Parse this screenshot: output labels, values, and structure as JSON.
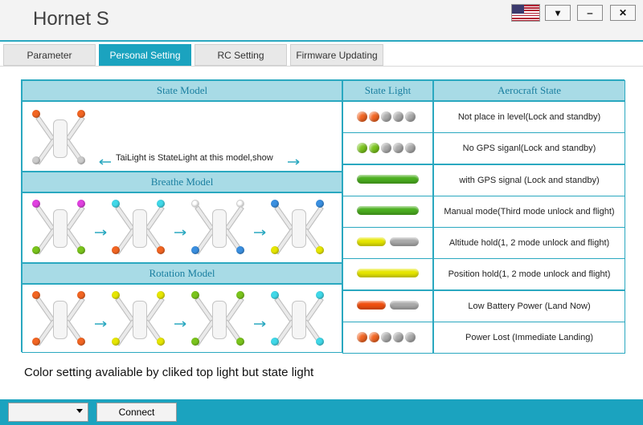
{
  "window": {
    "title": "Hornet S",
    "language_flag": "us-flag-icon",
    "buttons": {
      "dropdown": "▾",
      "minimize": "‒",
      "close": "✕"
    }
  },
  "tabs": [
    {
      "label": "Parameter",
      "active": false
    },
    {
      "label": "Personal Setting",
      "active": true
    },
    {
      "label": "RC Setting",
      "active": false
    },
    {
      "label": "Firmware Updating",
      "active": false
    }
  ],
  "table": {
    "headers": {
      "state_model": "State Model",
      "state_light": "State Light",
      "aerocraft_state": "Aerocraft State"
    },
    "breathe_model": "Breathe Model",
    "rotation_model": "Rotation Model",
    "tail_note": "TaiLight is StateLight at this model,show",
    "rows": [
      {
        "lights": [
          "#f26522",
          "#f26522",
          "#aaaaaa",
          "#aaaaaa",
          "#aaaaaa"
        ],
        "type": "dots",
        "state": "Not place in level(Lock and standby)"
      },
      {
        "lights": [
          "#7ac41c",
          "#7ac41c",
          "#aaaaaa",
          "#aaaaaa",
          "#aaaaaa"
        ],
        "type": "dots",
        "state": "No GPS siganl(Lock and standby)"
      },
      {
        "lights": [
          "#4caf20"
        ],
        "type": "bar-full",
        "state": "with GPS signal (Lock and standby)"
      },
      {
        "lights": [
          "#4caf20"
        ],
        "type": "bar-full",
        "state": "Manual mode(Third mode unlock and flight)"
      },
      {
        "lights": [
          "#e6e600",
          "#aaaaaa"
        ],
        "type": "bar-half",
        "state": "Altitude hold(1, 2 mode unlock and flight)"
      },
      {
        "lights": [
          "#e6e600"
        ],
        "type": "bar-full",
        "state": "Position hold(1, 2 mode unlock and flight)"
      },
      {
        "lights": [
          "#f05010",
          "#aaaaaa"
        ],
        "type": "bar-half",
        "state": "Low Battery Power (Land Now)"
      },
      {
        "lights": [
          "#f26522",
          "#f26522",
          "#aaaaaa",
          "#aaaaaa",
          "#aaaaaa"
        ],
        "type": "dots",
        "state": "Power Lost (Immediate Landing)"
      }
    ]
  },
  "drone_leds": {
    "state": [
      "#f26522",
      "#f26522",
      "#cccccc",
      "#cccccc"
    ],
    "breathe": [
      [
        "#e040e0",
        "#e040e0",
        "#7ac41c",
        "#7ac41c"
      ],
      [
        "#40d8e8",
        "#40d8e8",
        "#f26522",
        "#f26522"
      ],
      [
        "#ffffff",
        "#ffffff",
        "#3a8fe0",
        "#3a8fe0"
      ],
      [
        "#3a8fe0",
        "#3a8fe0",
        "#e6e600",
        "#e6e600"
      ]
    ],
    "rotation": [
      [
        "#f26522",
        "#f26522",
        "#f26522",
        "#f26522"
      ],
      [
        "#e6e600",
        "#e6e600",
        "#e6e600",
        "#e6e600"
      ],
      [
        "#7ac41c",
        "#7ac41c",
        "#7ac41c",
        "#7ac41c"
      ],
      [
        "#40d8e8",
        "#40d8e8",
        "#40d8e8",
        "#40d8e8"
      ]
    ]
  },
  "footer_note": "Color setting avaliable by cliked top light but state light",
  "bottom": {
    "combo_value": "",
    "connect_label": "Connect"
  }
}
